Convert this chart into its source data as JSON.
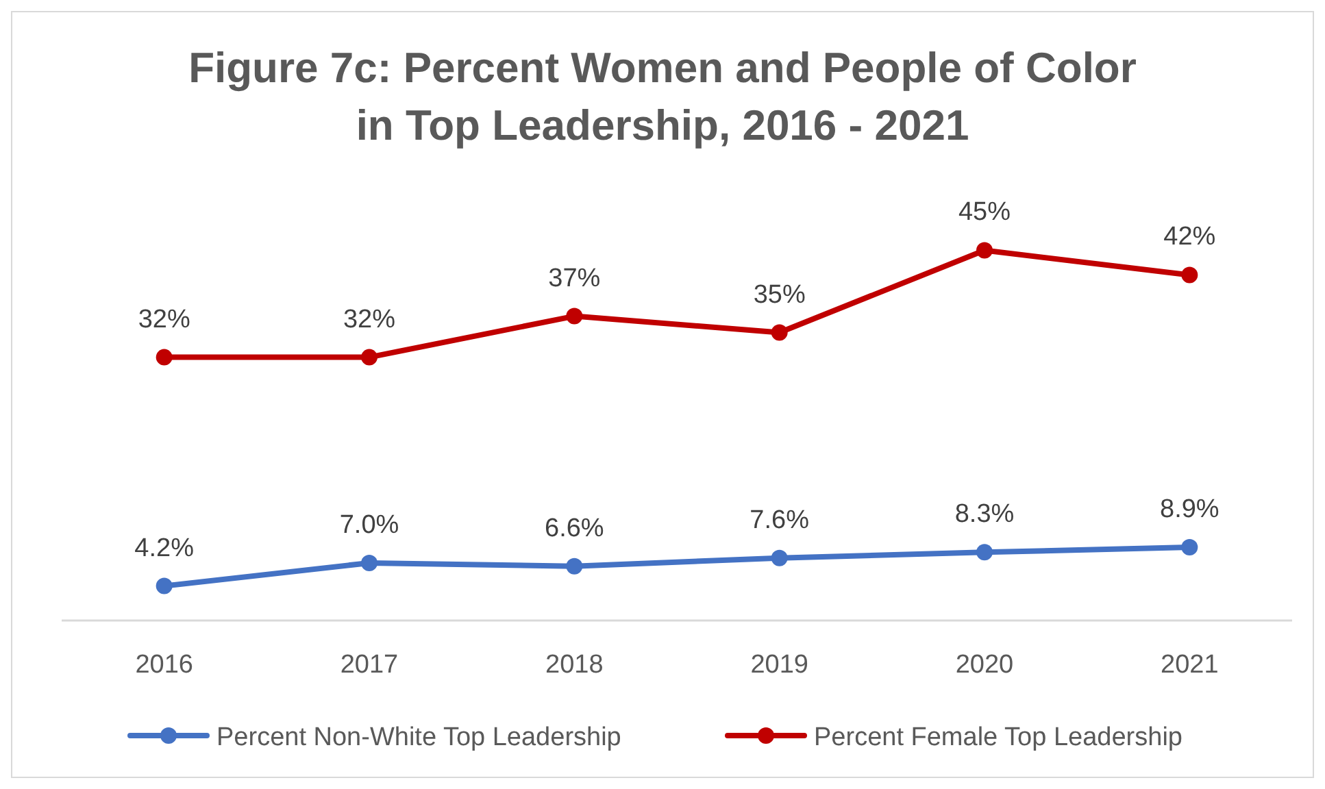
{
  "chart_data": {
    "type": "line",
    "title": "Figure 7c:  Percent Women and People of Color\nin Top Leadership, 2016 - 2021",
    "categories": [
      "2016",
      "2017",
      "2018",
      "2019",
      "2020",
      "2021"
    ],
    "tick_labels": "x",
    "grid": false,
    "legend": "bottom",
    "marker": "circle",
    "line_style": "solid",
    "series": [
      {
        "name": "Percent Non-White Top Leadership",
        "color": "#4472c4",
        "values": [
          4.2,
          7.0,
          6.6,
          7.6,
          8.3,
          8.9
        ],
        "value_labels": [
          "4.2%",
          "7.0%",
          "6.6%",
          "7.6%",
          "8.3%",
          "8.9%"
        ]
      },
      {
        "name": "Percent Female Top Leadership",
        "color": "#c00000",
        "values": [
          32,
          32,
          37,
          35,
          45,
          42
        ],
        "value_labels": [
          "32%",
          "32%",
          "37%",
          "35%",
          "45%",
          "42%"
        ]
      }
    ]
  }
}
